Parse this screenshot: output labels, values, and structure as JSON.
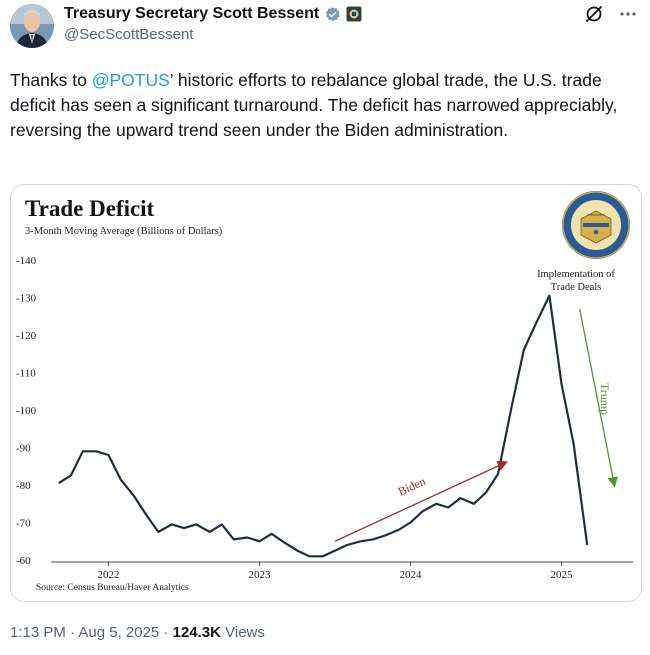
{
  "author": {
    "name": "Treasury Secretary Scott Bessent",
    "handle": "@SecScottBessent"
  },
  "icons": {
    "verified": "verified-badge-icon",
    "affiliation": "treasury-affiliation-icon",
    "grok": "grok-icon",
    "more": "more-icon"
  },
  "tweet": {
    "text_before": "Thanks to ",
    "mention": "@POTUS",
    "text_after": "’ historic efforts to rebalance global trade, the U.S. trade deficit has seen a significant turnaround. The deficit has narrowed appreciably, reversing the upward trend seen under the Biden administration."
  },
  "chart_data": {
    "type": "line",
    "title": "Trade Deficit",
    "subtitle": "3-Month Moving Average (Billions of Dollars)",
    "source": "Source: Census Bureau/Haver Analytics",
    "x_ticks": [
      "2022",
      "2023",
      "2024",
      "2025"
    ],
    "y_ticks": [
      "-140",
      "-130",
      "-120",
      "-110",
      "-100",
      "-90",
      "-80",
      "-70",
      "-60"
    ],
    "ylim": [
      -60,
      -140
    ],
    "grid": false,
    "series": [
      {
        "values": [
          {
            "x": 2021.67,
            "y": -80.5
          },
          {
            "x": 2021.75,
            "y": -82.5
          },
          {
            "x": 2021.83,
            "y": -89
          },
          {
            "x": 2021.92,
            "y": -89
          },
          {
            "x": 2022.0,
            "y": -88
          },
          {
            "x": 2022.08,
            "y": -81.5
          },
          {
            "x": 2022.17,
            "y": -77
          },
          {
            "x": 2022.25,
            "y": -72
          },
          {
            "x": 2022.33,
            "y": -67.5
          },
          {
            "x": 2022.42,
            "y": -69.5
          },
          {
            "x": 2022.5,
            "y": -68.5
          },
          {
            "x": 2022.58,
            "y": -69.5
          },
          {
            "x": 2022.67,
            "y": -67.5
          },
          {
            "x": 2022.75,
            "y": -69.5
          },
          {
            "x": 2022.83,
            "y": -65.5
          },
          {
            "x": 2022.92,
            "y": -66
          },
          {
            "x": 2023.0,
            "y": -65
          },
          {
            "x": 2023.08,
            "y": -67
          },
          {
            "x": 2023.17,
            "y": -64.5
          },
          {
            "x": 2023.25,
            "y": -62.5
          },
          {
            "x": 2023.33,
            "y": -61
          },
          {
            "x": 2023.42,
            "y": -61
          },
          {
            "x": 2023.5,
            "y": -62.5
          },
          {
            "x": 2023.58,
            "y": -64
          },
          {
            "x": 2023.67,
            "y": -65
          },
          {
            "x": 2023.75,
            "y": -65.5
          },
          {
            "x": 2023.83,
            "y": -66.5
          },
          {
            "x": 2023.92,
            "y": -68
          },
          {
            "x": 2024.0,
            "y": -70
          },
          {
            "x": 2024.08,
            "y": -73
          },
          {
            "x": 2024.17,
            "y": -75
          },
          {
            "x": 2024.25,
            "y": -74
          },
          {
            "x": 2024.33,
            "y": -76.5
          },
          {
            "x": 2024.42,
            "y": -75
          },
          {
            "x": 2024.5,
            "y": -78
          },
          {
            "x": 2024.58,
            "y": -83
          },
          {
            "x": 2024.67,
            "y": -101
          },
          {
            "x": 2024.75,
            "y": -116
          },
          {
            "x": 2024.83,
            "y": -123
          },
          {
            "x": 2024.92,
            "y": -130.5
          },
          {
            "x": 2025.0,
            "y": -107
          },
          {
            "x": 2025.08,
            "y": -91
          },
          {
            "x": 2025.17,
            "y": -64
          }
        ],
        "color": "#1f2d42"
      }
    ],
    "annotations": {
      "peak_label_line1": "Implementation of",
      "peak_label_line2": "Trade Deals",
      "biden_label": "Biden",
      "trump_label": "Trump",
      "biden_color": "#a52a2a",
      "trump_color": "#4a9a2a",
      "biden_arrow": {
        "from": {
          "x": 2023.5,
          "y": -65
        },
        "to": {
          "x": 2024.63,
          "y": -86
        }
      },
      "trump_arrow": {
        "from": {
          "x": 2025.12,
          "y": -127
        },
        "to": {
          "x": 2025.35,
          "y": -80
        }
      }
    }
  },
  "footer": {
    "time": "1:13 PM · Aug 5, 2025 · ",
    "views_count": "124.3K",
    "views_label": " Views"
  }
}
